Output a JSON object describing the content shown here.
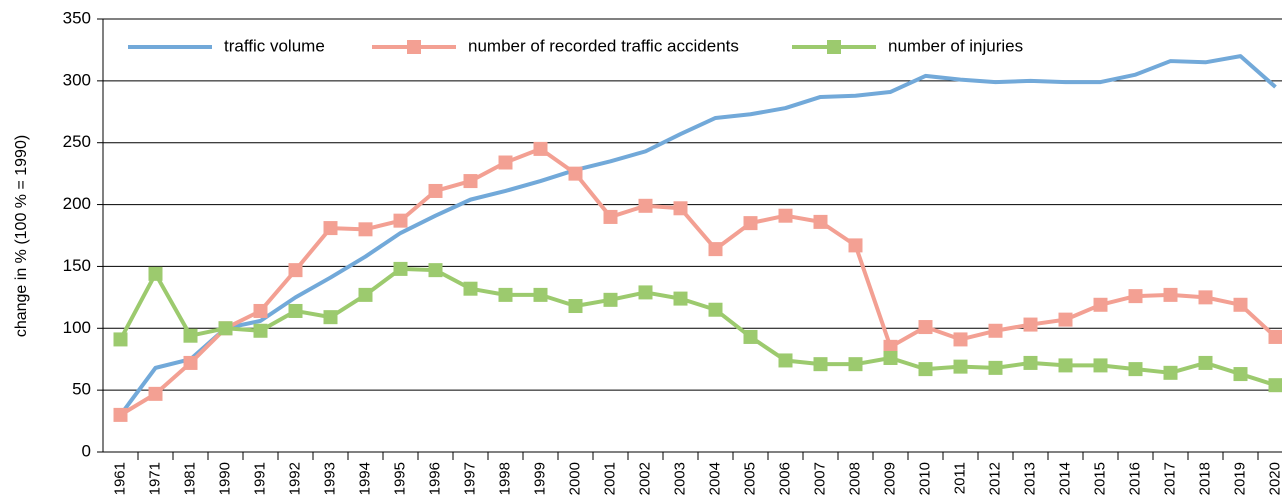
{
  "chart_data": {
    "type": "line",
    "y_label": "change in % (100 % = 1990)",
    "categories": [
      "1961",
      "1971",
      "1981",
      "1990",
      "1991",
      "1992",
      "1993",
      "1994",
      "1995",
      "1996",
      "1997",
      "1998",
      "1999",
      "2000",
      "2001",
      "2002",
      "2003",
      "2004",
      "2005",
      "2006",
      "2007",
      "2008",
      "2009",
      "2010",
      "2011",
      "2012",
      "2013",
      "2014",
      "2015",
      "2016",
      "2017",
      "2018",
      "2019",
      "2020"
    ],
    "series": [
      {
        "name": "traffic volume",
        "color": "#72a9d9",
        "marker": false,
        "values": [
          30,
          68,
          75,
          100,
          106,
          125,
          141,
          158,
          177,
          191,
          204,
          211,
          219,
          228,
          235,
          243,
          257,
          270,
          273,
          278,
          287,
          288,
          291,
          304,
          301,
          299,
          300,
          299,
          299,
          305,
          316,
          315,
          320,
          295
        ]
      },
      {
        "name": "number of recorded traffic accidents",
        "color": "#f3a093",
        "marker": true,
        "values": [
          30,
          47,
          72,
          100,
          114,
          147,
          181,
          180,
          187,
          211,
          219,
          234,
          245,
          225,
          190,
          199,
          197,
          164,
          185,
          191,
          186,
          167,
          85,
          101,
          91,
          98,
          103,
          107,
          119,
          126,
          127,
          125,
          119,
          93
        ]
      },
      {
        "name": "number of injuries",
        "color": "#9cca6e",
        "marker": true,
        "values": [
          91,
          144,
          94,
          100,
          98,
          114,
          109,
          127,
          148,
          147,
          132,
          127,
          127,
          118,
          123,
          129,
          124,
          115,
          93,
          74,
          71,
          71,
          76,
          67,
          69,
          68,
          72,
          70,
          70,
          67,
          64,
          72,
          63,
          54
        ]
      }
    ],
    "ylim": [
      0,
      350
    ],
    "yticks": [
      0,
      50,
      100,
      150,
      200,
      250,
      300,
      350
    ],
    "grid": true
  }
}
